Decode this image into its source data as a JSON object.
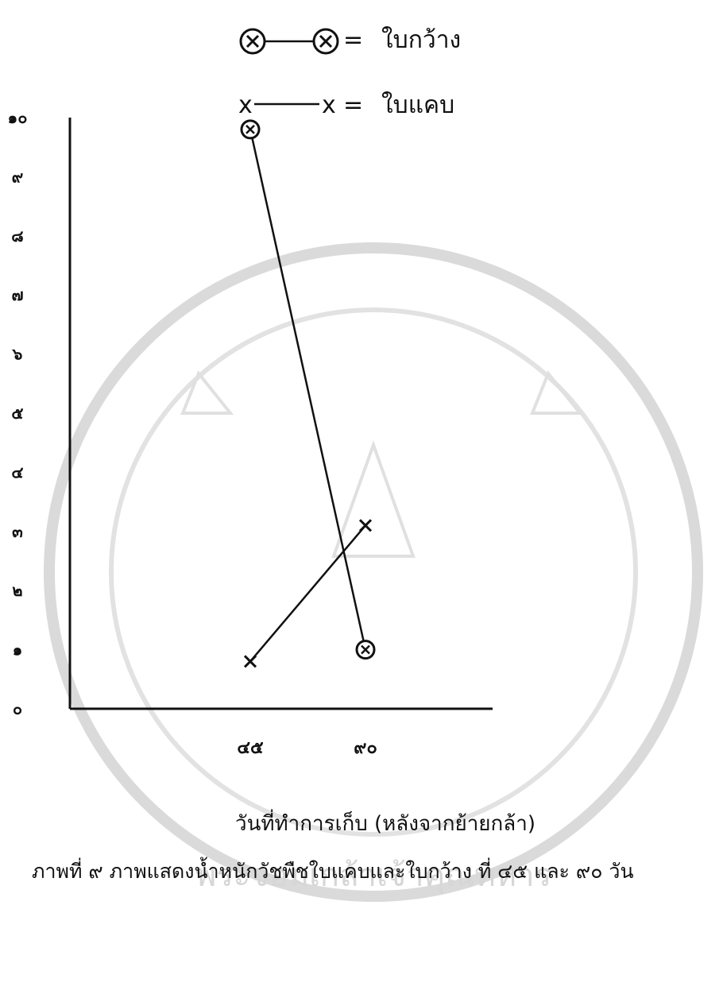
{
  "chart_data": {
    "type": "line",
    "x": [
      "๔๕",
      "๙๐"
    ],
    "y_ticks": [
      "๐",
      "๑",
      "๒",
      "๓",
      "๔",
      "๕",
      "๖",
      "๗",
      "๘",
      "๙",
      "๑๐"
    ],
    "ylim": [
      0,
      10
    ],
    "series": [
      {
        "name": "ใบกว้าง",
        "marker": "circled-x",
        "values": [
          9.8,
          1.0
        ]
      },
      {
        "name": "ใบแคบ",
        "marker": "x",
        "values": [
          0.8,
          3.1
        ]
      }
    ],
    "legend": {
      "placement": "top-right",
      "items": [
        {
          "symbol": "ⓧ——ⓧ",
          "sep": "=",
          "label": "ใบกว้าง"
        },
        {
          "symbol": "x——x",
          "sep": "=",
          "label": "ใบแคบ"
        }
      ]
    },
    "xlabel": "วันที่ทำการเก็บ  (หลังจากย้ายกล้า)",
    "ylabel": "",
    "grid": false,
    "caption": "ภาพที่ ๙ ภาพแสดงน้ำหนักวัชพืชใบแคบและใบกว้าง ที่ ๔๕ และ ๙๐ วัน",
    "colors": {
      "line": "#111111",
      "watermark": "#d6d6d6"
    }
  },
  "watermark": {
    "label": "พระจอมเกล้าเจ้าคุณทหาร"
  }
}
